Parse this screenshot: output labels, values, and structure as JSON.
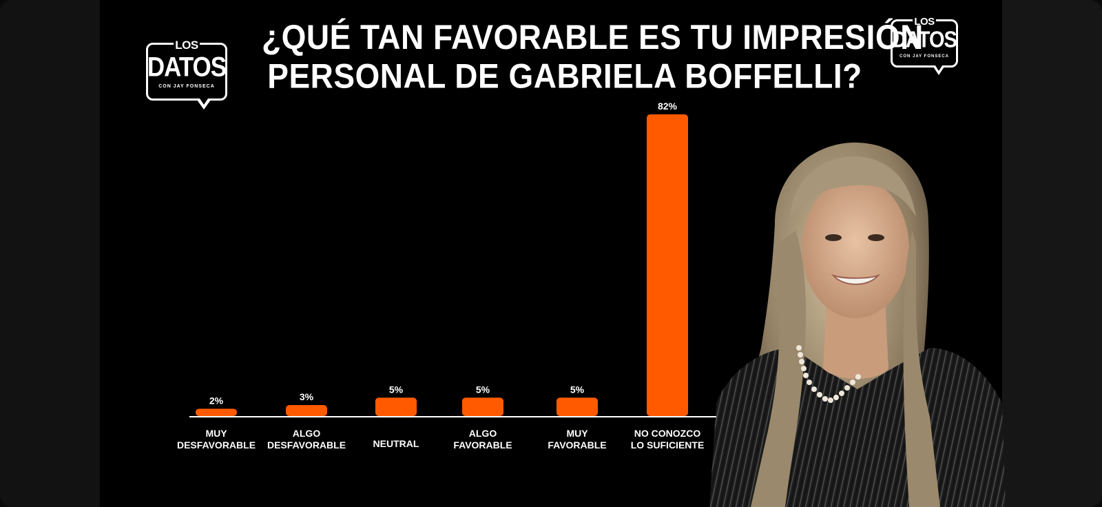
{
  "brand": {
    "logo_top": "LOS",
    "logo_main": "DATOS",
    "logo_sub": "CON JAY FONSECA"
  },
  "chart_data": {
    "type": "bar",
    "title": [
      "¿QUÉ TAN FAVORABLE ES TU IMPRESIÓN",
      "PERSONAL DE GABRIELA BOFFELLI?"
    ],
    "categories": [
      [
        "MUY",
        "DESFAVORABLE"
      ],
      [
        "ALGO",
        "DESFAVORABLE"
      ],
      [
        "NEUTRAL"
      ],
      [
        "ALGO",
        "FAVORABLE"
      ],
      [
        "MUY",
        "FAVORABLE"
      ],
      [
        "NO CONOZCO",
        "LO SUFICIENTE"
      ]
    ],
    "values": [
      2,
      3,
      5,
      5,
      5,
      82
    ],
    "value_labels": [
      "2%",
      "3%",
      "5%",
      "5%",
      "5%",
      "82%"
    ],
    "ylim": [
      0,
      82
    ],
    "bar_color": "#FF5A00",
    "grid": false,
    "legend": "none"
  },
  "colors": {
    "accent": "#FF5A00",
    "background": "#000000",
    "text": "#FFFFFF"
  }
}
